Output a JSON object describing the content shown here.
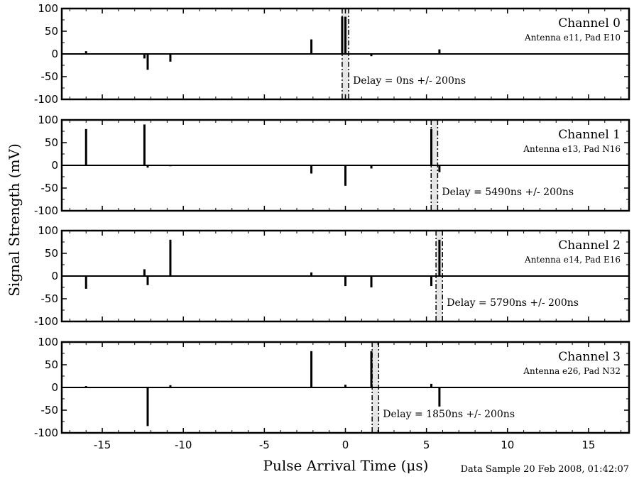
{
  "chart_data": {
    "type": "line",
    "xlabel": "Pulse Arrival Time (μs)",
    "ylabel": "Signal Strength (mV)",
    "xlim": [
      -17.5,
      17.5
    ],
    "ylim": [
      -100,
      100
    ],
    "xticks": [
      -15,
      -10,
      -5,
      0,
      5,
      10,
      15
    ],
    "xtick_labels": [
      "-15",
      "-10",
      "-5",
      "0",
      "5",
      "10",
      "15"
    ],
    "yticks": [
      100,
      50,
      0,
      -50,
      -100
    ],
    "ytick_labels": [
      "100",
      "50",
      "0",
      "-50",
      "-100"
    ],
    "footnote": "Data Sample 20 Feb 2008, 01:42:07",
    "panels": [
      {
        "title": "Channel 0",
        "subtitle": "Antenna e11, Pad E10",
        "delay_label": "Delay = 0ns +/- 200ns",
        "delay_us": 0.0,
        "uncertainty_us": 0.2,
        "pulses": [
          {
            "x": -16.0,
            "y": 6
          },
          {
            "x": -12.4,
            "y": -10
          },
          {
            "x": -12.2,
            "y": -35
          },
          {
            "x": -10.8,
            "y": -17
          },
          {
            "x": -2.1,
            "y": 32
          },
          {
            "x": -0.2,
            "y": 82
          },
          {
            "x": 0.0,
            "y": 82
          },
          {
            "x": 1.6,
            "y": -5
          },
          {
            "x": 5.8,
            "y": 10
          }
        ]
      },
      {
        "title": "Channel 1",
        "subtitle": "Antenna e13, Pad N16",
        "delay_label": "Delay = 5490ns +/- 200ns",
        "delay_us": 5.49,
        "uncertainty_us": 0.2,
        "pulses": [
          {
            "x": -16.0,
            "y": 80
          },
          {
            "x": -12.4,
            "y": 90
          },
          {
            "x": -12.2,
            "y": -5
          },
          {
            "x": -10.8,
            "y": -2
          },
          {
            "x": -2.1,
            "y": -18
          },
          {
            "x": 0.0,
            "y": -45
          },
          {
            "x": 1.6,
            "y": -7
          },
          {
            "x": 5.3,
            "y": 80
          },
          {
            "x": 5.8,
            "y": -15
          }
        ]
      },
      {
        "title": "Channel 2",
        "subtitle": "Antenna e14, Pad E16",
        "delay_label": "Delay = 5790ns +/- 200ns",
        "delay_us": 5.79,
        "uncertainty_us": 0.2,
        "pulses": [
          {
            "x": -16.0,
            "y": -28
          },
          {
            "x": -12.4,
            "y": 15
          },
          {
            "x": -12.2,
            "y": -20
          },
          {
            "x": -10.8,
            "y": 80
          },
          {
            "x": -2.1,
            "y": 8
          },
          {
            "x": 0.0,
            "y": -22
          },
          {
            "x": 1.6,
            "y": -25
          },
          {
            "x": 5.3,
            "y": -22
          },
          {
            "x": 5.8,
            "y": 80
          }
        ]
      },
      {
        "title": "Channel 3",
        "subtitle": "Antenna e26, Pad N32",
        "delay_label": "Delay = 1850ns +/- 200ns",
        "delay_us": 1.85,
        "uncertainty_us": 0.2,
        "pulses": [
          {
            "x": -16.0,
            "y": 3
          },
          {
            "x": -12.2,
            "y": -85
          },
          {
            "x": -10.8,
            "y": 5
          },
          {
            "x": -2.1,
            "y": 80
          },
          {
            "x": 0.0,
            "y": 6
          },
          {
            "x": 1.6,
            "y": 80
          },
          {
            "x": 5.3,
            "y": 8
          },
          {
            "x": 5.8,
            "y": -42
          }
        ]
      }
    ]
  }
}
